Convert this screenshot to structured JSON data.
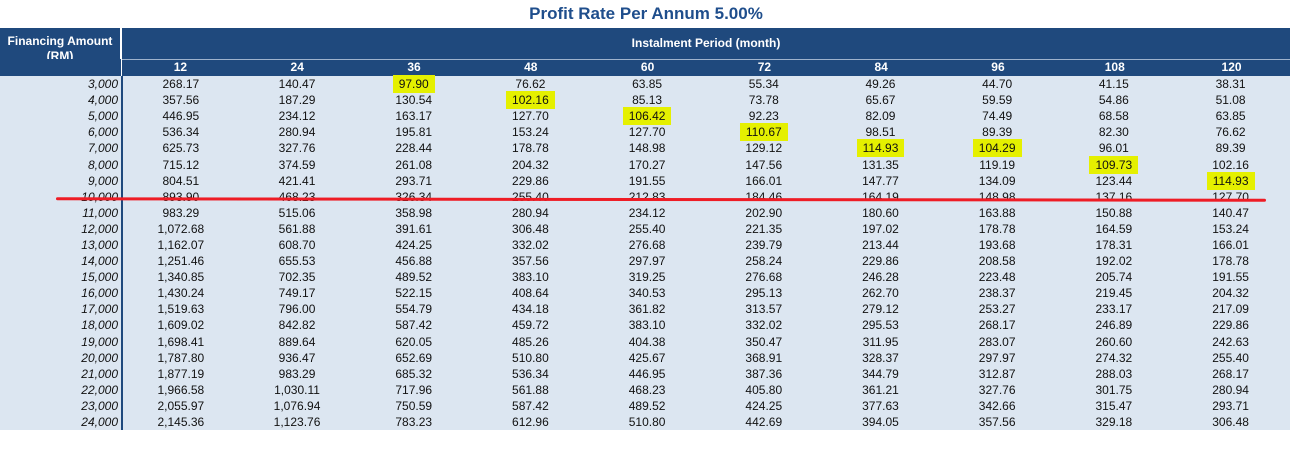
{
  "title": "Profit Rate Per Annum 5.00%",
  "header": {
    "financing_amount": "Financing Amount",
    "unit": "(RM)",
    "period": "Instalment Period (month)"
  },
  "columns": [
    "12",
    "24",
    "36",
    "48",
    "60",
    "72",
    "84",
    "96",
    "108",
    "120"
  ],
  "highlight_color": "#e5f000",
  "rows": [
    {
      "amount": "3,000",
      "values": [
        "268.17",
        "140.47",
        "97.90",
        "76.62",
        "63.85",
        "55.34",
        "49.26",
        "44.70",
        "41.15",
        "38.31"
      ],
      "hl": [
        2
      ]
    },
    {
      "amount": "4,000",
      "values": [
        "357.56",
        "187.29",
        "130.54",
        "102.16",
        "85.13",
        "73.78",
        "65.67",
        "59.59",
        "54.86",
        "51.08"
      ],
      "hl": [
        3
      ]
    },
    {
      "amount": "5,000",
      "values": [
        "446.95",
        "234.12",
        "163.17",
        "127.70",
        "106.42",
        "92.23",
        "82.09",
        "74.49",
        "68.58",
        "63.85"
      ],
      "hl": [
        4
      ]
    },
    {
      "amount": "6,000",
      "values": [
        "536.34",
        "280.94",
        "195.81",
        "153.24",
        "127.70",
        "110.67",
        "98.51",
        "89.39",
        "82.30",
        "76.62"
      ],
      "hl": [
        5
      ]
    },
    {
      "amount": "7,000",
      "values": [
        "625.73",
        "327.76",
        "228.44",
        "178.78",
        "148.98",
        "129.12",
        "114.93",
        "104.29",
        "96.01",
        "89.39"
      ],
      "hl": [
        6,
        7
      ]
    },
    {
      "amount": "8,000",
      "values": [
        "715.12",
        "374.59",
        "261.08",
        "204.32",
        "170.27",
        "147.56",
        "131.35",
        "119.19",
        "109.73",
        "102.16"
      ],
      "hl": [
        8
      ]
    },
    {
      "amount": "9,000",
      "values": [
        "804.51",
        "421.41",
        "293.71",
        "229.86",
        "191.55",
        "166.01",
        "147.77",
        "134.09",
        "123.44",
        "114.93"
      ],
      "hl": [
        9
      ]
    },
    {
      "amount": "10,000",
      "values": [
        "893.90",
        "468.23",
        "326.34",
        "255.40",
        "212.83",
        "184.46",
        "164.19",
        "148.98",
        "137.16",
        "127.70"
      ],
      "hl": []
    },
    {
      "amount": "11,000",
      "values": [
        "983.29",
        "515.06",
        "358.98",
        "280.94",
        "234.12",
        "202.90",
        "180.60",
        "163.88",
        "150.88",
        "140.47"
      ],
      "hl": []
    },
    {
      "amount": "12,000",
      "values": [
        "1,072.68",
        "561.88",
        "391.61",
        "306.48",
        "255.40",
        "221.35",
        "197.02",
        "178.78",
        "164.59",
        "153.24"
      ],
      "hl": []
    },
    {
      "amount": "13,000",
      "values": [
        "1,162.07",
        "608.70",
        "424.25",
        "332.02",
        "276.68",
        "239.79",
        "213.44",
        "193.68",
        "178.31",
        "166.01"
      ],
      "hl": []
    },
    {
      "amount": "14,000",
      "values": [
        "1,251.46",
        "655.53",
        "456.88",
        "357.56",
        "297.97",
        "258.24",
        "229.86",
        "208.58",
        "192.02",
        "178.78"
      ],
      "hl": []
    },
    {
      "amount": "15,000",
      "values": [
        "1,340.85",
        "702.35",
        "489.52",
        "383.10",
        "319.25",
        "276.68",
        "246.28",
        "223.48",
        "205.74",
        "191.55"
      ],
      "hl": []
    },
    {
      "amount": "16,000",
      "values": [
        "1,430.24",
        "749.17",
        "522.15",
        "408.64",
        "340.53",
        "295.13",
        "262.70",
        "238.37",
        "219.45",
        "204.32"
      ],
      "hl": []
    },
    {
      "amount": "17,000",
      "values": [
        "1,519.63",
        "796.00",
        "554.79",
        "434.18",
        "361.82",
        "313.57",
        "279.12",
        "253.27",
        "233.17",
        "217.09"
      ],
      "hl": []
    },
    {
      "amount": "18,000",
      "values": [
        "1,609.02",
        "842.82",
        "587.42",
        "459.72",
        "383.10",
        "332.02",
        "295.53",
        "268.17",
        "246.89",
        "229.86"
      ],
      "hl": []
    },
    {
      "amount": "19,000",
      "values": [
        "1,698.41",
        "889.64",
        "620.05",
        "485.26",
        "404.38",
        "350.47",
        "311.95",
        "283.07",
        "260.60",
        "242.63"
      ],
      "hl": []
    },
    {
      "amount": "20,000",
      "values": [
        "1,787.80",
        "936.47",
        "652.69",
        "510.80",
        "425.67",
        "368.91",
        "328.37",
        "297.97",
        "274.32",
        "255.40"
      ],
      "hl": []
    },
    {
      "amount": "21,000",
      "values": [
        "1,877.19",
        "983.29",
        "685.32",
        "536.34",
        "446.95",
        "387.36",
        "344.79",
        "312.87",
        "288.03",
        "268.17"
      ],
      "hl": []
    },
    {
      "amount": "22,000",
      "values": [
        "1,966.58",
        "1,030.11",
        "717.96",
        "561.88",
        "468.23",
        "405.80",
        "361.21",
        "327.76",
        "301.75",
        "280.94"
      ],
      "hl": []
    },
    {
      "amount": "23,000",
      "values": [
        "2,055.97",
        "1,076.94",
        "750.59",
        "587.42",
        "489.52",
        "424.25",
        "377.63",
        "342.66",
        "315.47",
        "293.71"
      ],
      "hl": []
    },
    {
      "amount": "24,000",
      "values": [
        "2,145.36",
        "1,123.76",
        "783.23",
        "612.96",
        "510.80",
        "442.69",
        "394.05",
        "357.56",
        "329.18",
        "306.48"
      ],
      "hl": []
    }
  ]
}
